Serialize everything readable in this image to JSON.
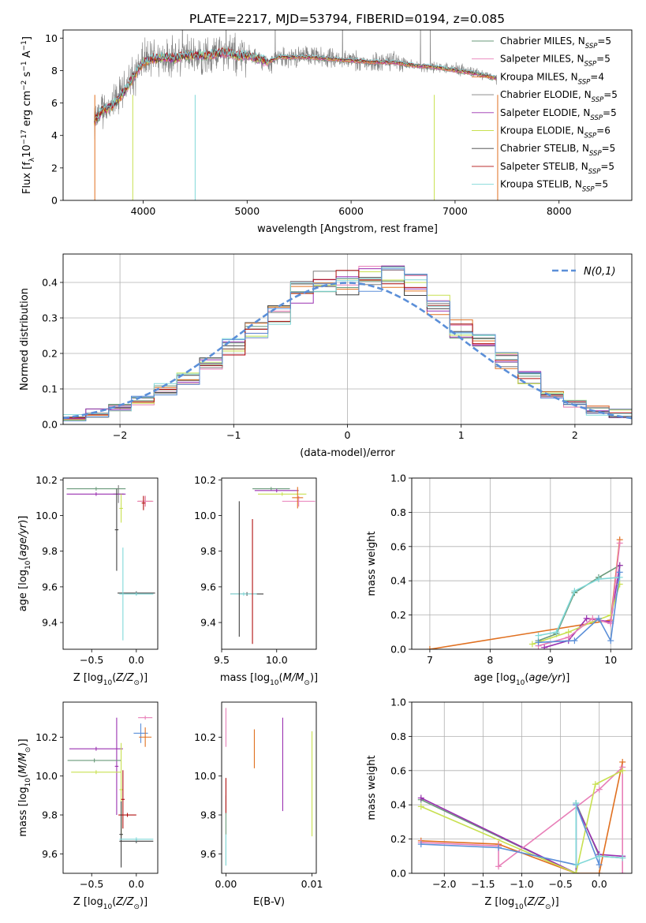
{
  "figure_title": "PLATE=2217, MJD=53794, FIBERID=0194, z=0.085",
  "legend": [
    {
      "base": "Chabrier MILES, N",
      "sub": "SSP",
      "eq": "=5",
      "color": "#6a9a7a"
    },
    {
      "base": "Salpeter MILES, N",
      "sub": "SSP",
      "eq": "=5",
      "color": "#e87fb8"
    },
    {
      "base": "Kroupa MILES, N",
      "sub": "SSP",
      "eq": "=4",
      "color": "#e07020"
    },
    {
      "base": "Chabrier ELODIE, N",
      "sub": "SSP",
      "eq": "=5",
      "color": "#7f7f7f"
    },
    {
      "base": "Salpeter ELODIE, N",
      "sub": "SSP",
      "eq": "=5",
      "color": "#9a30b0"
    },
    {
      "base": "Kroupa ELODIE, N",
      "sub": "SSP",
      "eq": "=6",
      "color": "#c8e050"
    },
    {
      "base": "Chabrier STELIB, N",
      "sub": "SSP",
      "eq": "=5",
      "color": "#404040"
    },
    {
      "base": "Salpeter STELIB, N",
      "sub": "SSP",
      "eq": "=5",
      "color": "#b01010"
    },
    {
      "base": "Kroupa STELIB, N",
      "sub": "SSP",
      "eq": "=5",
      "color": "#80d8d8"
    }
  ],
  "chart_data": [
    {
      "type": "line",
      "id": "spectrum",
      "xlabel": "wavelength [Angstrom, rest frame]",
      "ylabel": "Flux [f_λ 10^-17 erg cm^-2 s^-1 A^-1]",
      "xlim": [
        3230,
        8700
      ],
      "ylim": [
        0,
        10.5
      ],
      "xticks": [
        4000,
        5000,
        6000,
        7000,
        8000
      ],
      "yticks": [
        0,
        2,
        4,
        6,
        8,
        10
      ],
      "grid": false,
      "legend_position": "right",
      "x": [
        3530,
        3600,
        3700,
        3800,
        3900,
        4000,
        4100,
        4200,
        4300,
        4400,
        4500,
        4600,
        4700,
        4800,
        4900,
        5000,
        5100,
        5200,
        5300,
        5400,
        5500,
        5600,
        5800,
        6000,
        6200,
        6400,
        6600,
        6800,
        7000,
        7200,
        7400
      ],
      "data_values": [
        4.6,
        5.6,
        5.8,
        6.6,
        7.6,
        8.6,
        8.8,
        8.9,
        8.7,
        9.0,
        8.9,
        8.9,
        9.1,
        9.2,
        8.9,
        9.0,
        8.7,
        8.4,
        8.8,
        8.8,
        8.9,
        8.9,
        8.7,
        8.7,
        8.5,
        8.6,
        8.3,
        8.2,
        8.1,
        7.9,
        7.5
      ],
      "model_values": [
        4.8,
        5.5,
        5.8,
        6.5,
        7.5,
        8.5,
        8.7,
        8.8,
        8.7,
        8.9,
        8.9,
        8.9,
        9.0,
        9.1,
        8.9,
        8.9,
        8.7,
        8.5,
        8.8,
        8.8,
        8.8,
        8.8,
        8.7,
        8.6,
        8.5,
        8.5,
        8.3,
        8.2,
        8.0,
        7.8,
        7.5
      ]
    },
    {
      "type": "area",
      "id": "residuals",
      "xlabel": "(data-model)/error",
      "ylabel": "Normed distribution",
      "xlim": [
        -2.5,
        2.5
      ],
      "ylim": [
        0,
        0.48
      ],
      "xticks": [
        -2,
        -1,
        0,
        1,
        2
      ],
      "yticks": [
        0.0,
        0.1,
        0.2,
        0.3,
        0.4
      ],
      "grid": true,
      "legend_position": "top-right",
      "gaussian_label": "N(0,1)",
      "bins": [
        -2.5,
        -2.3,
        -2.1,
        -1.9,
        -1.7,
        -1.5,
        -1.3,
        -1.1,
        -0.9,
        -0.7,
        -0.5,
        -0.3,
        -0.1,
        0.1,
        0.3,
        0.5,
        0.7,
        0.9,
        1.1,
        1.3,
        1.5,
        1.7,
        1.9,
        2.1,
        2.3,
        2.5
      ],
      "hist_values": [
        0.02,
        0.03,
        0.05,
        0.07,
        0.1,
        0.13,
        0.17,
        0.22,
        0.26,
        0.31,
        0.37,
        0.41,
        0.4,
        0.41,
        0.42,
        0.39,
        0.34,
        0.27,
        0.23,
        0.18,
        0.13,
        0.09,
        0.06,
        0.04,
        0.03
      ]
    },
    {
      "type": "scatter",
      "id": "age-vs-Z",
      "xlabel": "Z [log10(Z/Z⊙)]",
      "ylabel": "age [log10(age/yr)]",
      "xlim": [
        -0.82,
        0.24
      ],
      "ylim": [
        9.25,
        10.21
      ],
      "xticks": [
        -0.5,
        0.0
      ],
      "yticks": [
        9.4,
        9.6,
        9.8,
        10.0,
        10.2
      ],
      "points": [
        {
          "x": -0.45,
          "y": 10.15,
          "xerr": 0.33,
          "yerr": 0.01,
          "color": "#6a9a7a"
        },
        {
          "x": -0.2,
          "y": 10.12,
          "xerr": 0.06,
          "yerr": 0.05,
          "color": "#7f7f7f"
        },
        {
          "x": -0.45,
          "y": 10.12,
          "xerr": 0.33,
          "yerr": 0.01,
          "color": "#9a30b0"
        },
        {
          "x": -0.17,
          "y": 10.04,
          "xerr": 0.02,
          "yerr": 0.08,
          "color": "#c8e050"
        },
        {
          "x": 0.1,
          "y": 10.08,
          "xerr": 0.08,
          "yerr": 0.03,
          "color": "#e07020"
        },
        {
          "x": 0.1,
          "y": 10.08,
          "xerr": 0.09,
          "yerr": 0.03,
          "color": "#e87fb8"
        },
        {
          "x": 0.08,
          "y": 10.07,
          "xerr": 0.02,
          "yerr": 0.04,
          "color": "#b01010"
        },
        {
          "x": -0.22,
          "y": 9.92,
          "xerr": 0.02,
          "yerr": 0.23,
          "color": "#404040"
        },
        {
          "x": 0.0,
          "y": 9.565,
          "xerr": 0.21,
          "yerr": 0.01,
          "color": "#404040"
        },
        {
          "x": -0.15,
          "y": 9.56,
          "xerr": 0.03,
          "yerr": 0.26,
          "color": "#80d8d8"
        },
        {
          "x": 0.0,
          "y": 9.56,
          "xerr": 0.19,
          "yerr": 0.01,
          "color": "#80d8d8"
        }
      ]
    },
    {
      "type": "scatter",
      "id": "age-vs-mass",
      "xlabel": "mass [log10(M/M⊙)]",
      "ylabel": "",
      "xlim": [
        9.5,
        10.36
      ],
      "ylim": [
        9.25,
        10.21
      ],
      "xticks": [
        9.5,
        10.0
      ],
      "yticks": [
        9.4,
        9.6,
        9.8,
        10.0,
        10.2
      ],
      "points": [
        {
          "x": 9.95,
          "y": 10.15,
          "xerr": 0.17,
          "yerr": 0.01,
          "color": "#6a9a7a"
        },
        {
          "x": 10.0,
          "y": 10.14,
          "xerr": 0.2,
          "yerr": 0.01,
          "color": "#9a30b0"
        },
        {
          "x": 10.05,
          "y": 10.12,
          "xerr": 0.22,
          "yerr": 0.01,
          "color": "#c8e050"
        },
        {
          "x": 10.2,
          "y": 10.08,
          "xerr": 0.15,
          "yerr": 0.03,
          "color": "#e87fb8"
        },
        {
          "x": 10.19,
          "y": 10.1,
          "xerr": 0.05,
          "yerr": 0.06,
          "color": "#e07020"
        },
        {
          "x": 9.73,
          "y": 9.56,
          "xerr": 0.15,
          "yerr": 0.01,
          "color": "#404040"
        },
        {
          "x": 9.7,
          "y": 9.56,
          "xerr": 0.12,
          "yerr": 0.01,
          "color": "#80d8d8"
        },
        {
          "x": 9.78,
          "y": 9.63,
          "xerr": 0.0,
          "yerr": 0.35,
          "color": "#b01010"
        },
        {
          "x": 9.66,
          "y": 9.7,
          "xerr": 0.0,
          "yerr": 0.38,
          "color": "#404040"
        }
      ]
    },
    {
      "type": "line",
      "id": "weight-vs-age",
      "xlabel": "age [log10(age/yr)]",
      "ylabel": "mass weight",
      "xlim": [
        6.7,
        10.35
      ],
      "ylim": [
        0,
        1.0
      ],
      "xticks": [
        7,
        8,
        9,
        10
      ],
      "yticks": [
        0.0,
        0.2,
        0.4,
        0.6,
        0.8,
        1.0
      ],
      "grid": true,
      "series": [
        {
          "color": "#e07020",
          "x": [
            7.0,
            10.0,
            10.15
          ],
          "y": [
            0.0,
            0.17,
            0.64
          ]
        },
        {
          "color": "#6a9a7a",
          "x": [
            8.8,
            9.1,
            9.4,
            9.8,
            10.15
          ],
          "y": [
            0.05,
            0.09,
            0.33,
            0.42,
            0.49
          ]
        },
        {
          "color": "#9a30b0",
          "x": [
            8.9,
            9.3,
            9.6,
            10.0,
            10.15
          ],
          "y": [
            0.01,
            0.05,
            0.18,
            0.16,
            0.49
          ]
        },
        {
          "color": "#c8e050",
          "x": [
            8.7,
            9.3,
            9.7,
            10.0,
            10.15
          ],
          "y": [
            0.03,
            0.1,
            0.16,
            0.2,
            0.38
          ]
        },
        {
          "color": "#e87fb8",
          "x": [
            8.8,
            9.3,
            9.7,
            10.0,
            10.15
          ],
          "y": [
            0.02,
            0.07,
            0.18,
            0.15,
            0.62
          ]
        },
        {
          "color": "#80d8d8",
          "x": [
            8.8,
            9.1,
            9.4,
            9.8,
            10.15
          ],
          "y": [
            0.08,
            0.1,
            0.34,
            0.41,
            0.42
          ]
        },
        {
          "color": "#5b8fd8",
          "x": [
            8.8,
            9.4,
            9.8,
            10.0,
            10.15
          ],
          "y": [
            0.04,
            0.05,
            0.18,
            0.05,
            0.45
          ]
        }
      ]
    },
    {
      "type": "scatter",
      "id": "mass-vs-Z",
      "xlabel": "Z [log10(Z/Z⊙)]",
      "ylabel": "mass [log10(M/M⊙)]",
      "xlim": [
        -0.82,
        0.24
      ],
      "ylim": [
        9.5,
        10.38
      ],
      "xticks": [
        -0.5,
        0.0
      ],
      "yticks": [
        9.6,
        9.8,
        10.0,
        10.2
      ],
      "points": [
        {
          "x": 0.1,
          "y": 10.3,
          "xerr": 0.08,
          "yerr": 0.01,
          "color": "#e87fb8"
        },
        {
          "x": 0.05,
          "y": 10.22,
          "xerr": 0.08,
          "yerr": 0.05,
          "color": "#5b8fd8"
        },
        {
          "x": 0.1,
          "y": 10.2,
          "xerr": 0.07,
          "yerr": 0.05,
          "color": "#e07020"
        },
        {
          "x": -0.45,
          "y": 10.14,
          "xerr": 0.3,
          "yerr": 0.01,
          "color": "#9a30b0"
        },
        {
          "x": -0.22,
          "y": 10.05,
          "xerr": 0.02,
          "yerr": 0.25,
          "color": "#9a30b0"
        },
        {
          "x": -0.47,
          "y": 10.08,
          "xerr": 0.3,
          "yerr": 0.01,
          "color": "#6a9a7a"
        },
        {
          "x": -0.45,
          "y": 10.02,
          "xerr": 0.28,
          "yerr": 0.01,
          "color": "#c8e050"
        },
        {
          "x": -0.17,
          "y": 9.93,
          "xerr": 0.02,
          "yerr": 0.24,
          "color": "#c8e050"
        },
        {
          "x": -0.15,
          "y": 9.88,
          "xerr": 0.02,
          "yerr": 0.15,
          "color": "#b01010"
        },
        {
          "x": -0.1,
          "y": 9.8,
          "xerr": 0.1,
          "yerr": 0.01,
          "color": "#b01010"
        },
        {
          "x": -0.17,
          "y": 9.7,
          "xerr": 0.02,
          "yerr": 0.17,
          "color": "#404040"
        },
        {
          "x": 0.0,
          "y": 9.665,
          "xerr": 0.19,
          "yerr": 0.01,
          "color": "#404040"
        },
        {
          "x": 0.0,
          "y": 9.675,
          "xerr": 0.19,
          "yerr": 0.01,
          "color": "#80d8d8"
        }
      ]
    },
    {
      "type": "scatter",
      "id": "mass-vs-ebv",
      "xlabel": "E(B-V)",
      "ylabel": "",
      "xlim": [
        -0.0005,
        0.0105
      ],
      "ylim": [
        9.5,
        10.38
      ],
      "xticks": [
        0.0,
        0.01
      ],
      "yticks": [
        9.6,
        9.8,
        10.0,
        10.2
      ],
      "points": [
        {
          "x": 0.0,
          "y": 10.25,
          "xerr": 0,
          "yerr": 0.1,
          "color": "#e87fb8"
        },
        {
          "x": 0.0,
          "y": 9.72,
          "xerr": 0,
          "yerr": 0.18,
          "color": "#6a9a7a"
        },
        {
          "x": 0.0,
          "y": 9.9,
          "xerr": 0,
          "yerr": 0.09,
          "color": "#b01010"
        },
        {
          "x": 0.0,
          "y": 9.62,
          "xerr": 0,
          "yerr": 0.08,
          "color": "#80d8d8"
        },
        {
          "x": 0.0033,
          "y": 10.14,
          "xerr": 0,
          "yerr": 0.1,
          "color": "#e07020"
        },
        {
          "x": 0.0066,
          "y": 10.06,
          "xerr": 0,
          "yerr": 0.24,
          "color": "#9a30b0"
        },
        {
          "x": 0.01,
          "y": 9.96,
          "xerr": 0,
          "yerr": 0.27,
          "color": "#c8e050"
        }
      ]
    },
    {
      "type": "line",
      "id": "weight-vs-Z",
      "xlabel": "Z [log10(Z/Z⊙)]",
      "ylabel": "mass weight",
      "xlim": [
        -2.42,
        0.42
      ],
      "ylim": [
        0,
        1.0
      ],
      "xticks": [
        -2.0,
        -1.5,
        -1.0,
        -0.5,
        0.0
      ],
      "yticks": [
        0.0,
        0.2,
        0.4,
        0.6,
        0.8,
        1.0
      ],
      "grid": true,
      "series": [
        {
          "color": "#6a9a7a",
          "x": [
            -2.3,
            -0.3,
            -0.3,
            0.0,
            0.3
          ],
          "y": [
            0.43,
            0.0,
            0.41,
            0.1,
            0.09
          ]
        },
        {
          "color": "#9a30b0",
          "x": [
            -2.3,
            -0.3,
            -0.3,
            0.0,
            0.3
          ],
          "y": [
            0.44,
            0.0,
            0.4,
            0.11,
            0.1
          ]
        },
        {
          "color": "#e07020",
          "x": [
            -2.3,
            -1.3,
            -0.3,
            0.0,
            0.3
          ],
          "y": [
            0.19,
            0.17,
            0.0,
            0.0,
            0.65
          ]
        },
        {
          "color": "#e87fb8",
          "x": [
            -2.3,
            -1.3,
            -1.3,
            0.0,
            0.3,
            0.3
          ],
          "y": [
            0.18,
            0.16,
            0.04,
            0.49,
            0.62,
            0.0
          ]
        },
        {
          "color": "#c8e050",
          "x": [
            -2.3,
            -0.3,
            -0.05,
            0.3
          ],
          "y": [
            0.39,
            0.0,
            0.52,
            0.6
          ]
        },
        {
          "color": "#5b8fd8",
          "x": [
            -2.3,
            -1.3,
            -0.3,
            -0.3,
            0.0,
            0.0
          ],
          "y": [
            0.17,
            0.15,
            0.05,
            0.4,
            0.05,
            0.1
          ]
        },
        {
          "color": "#80d8d8",
          "x": [
            -0.3,
            -0.3,
            0.0,
            0.3
          ],
          "y": [
            0.41,
            0.05,
            0.1,
            0.09
          ]
        }
      ]
    }
  ]
}
